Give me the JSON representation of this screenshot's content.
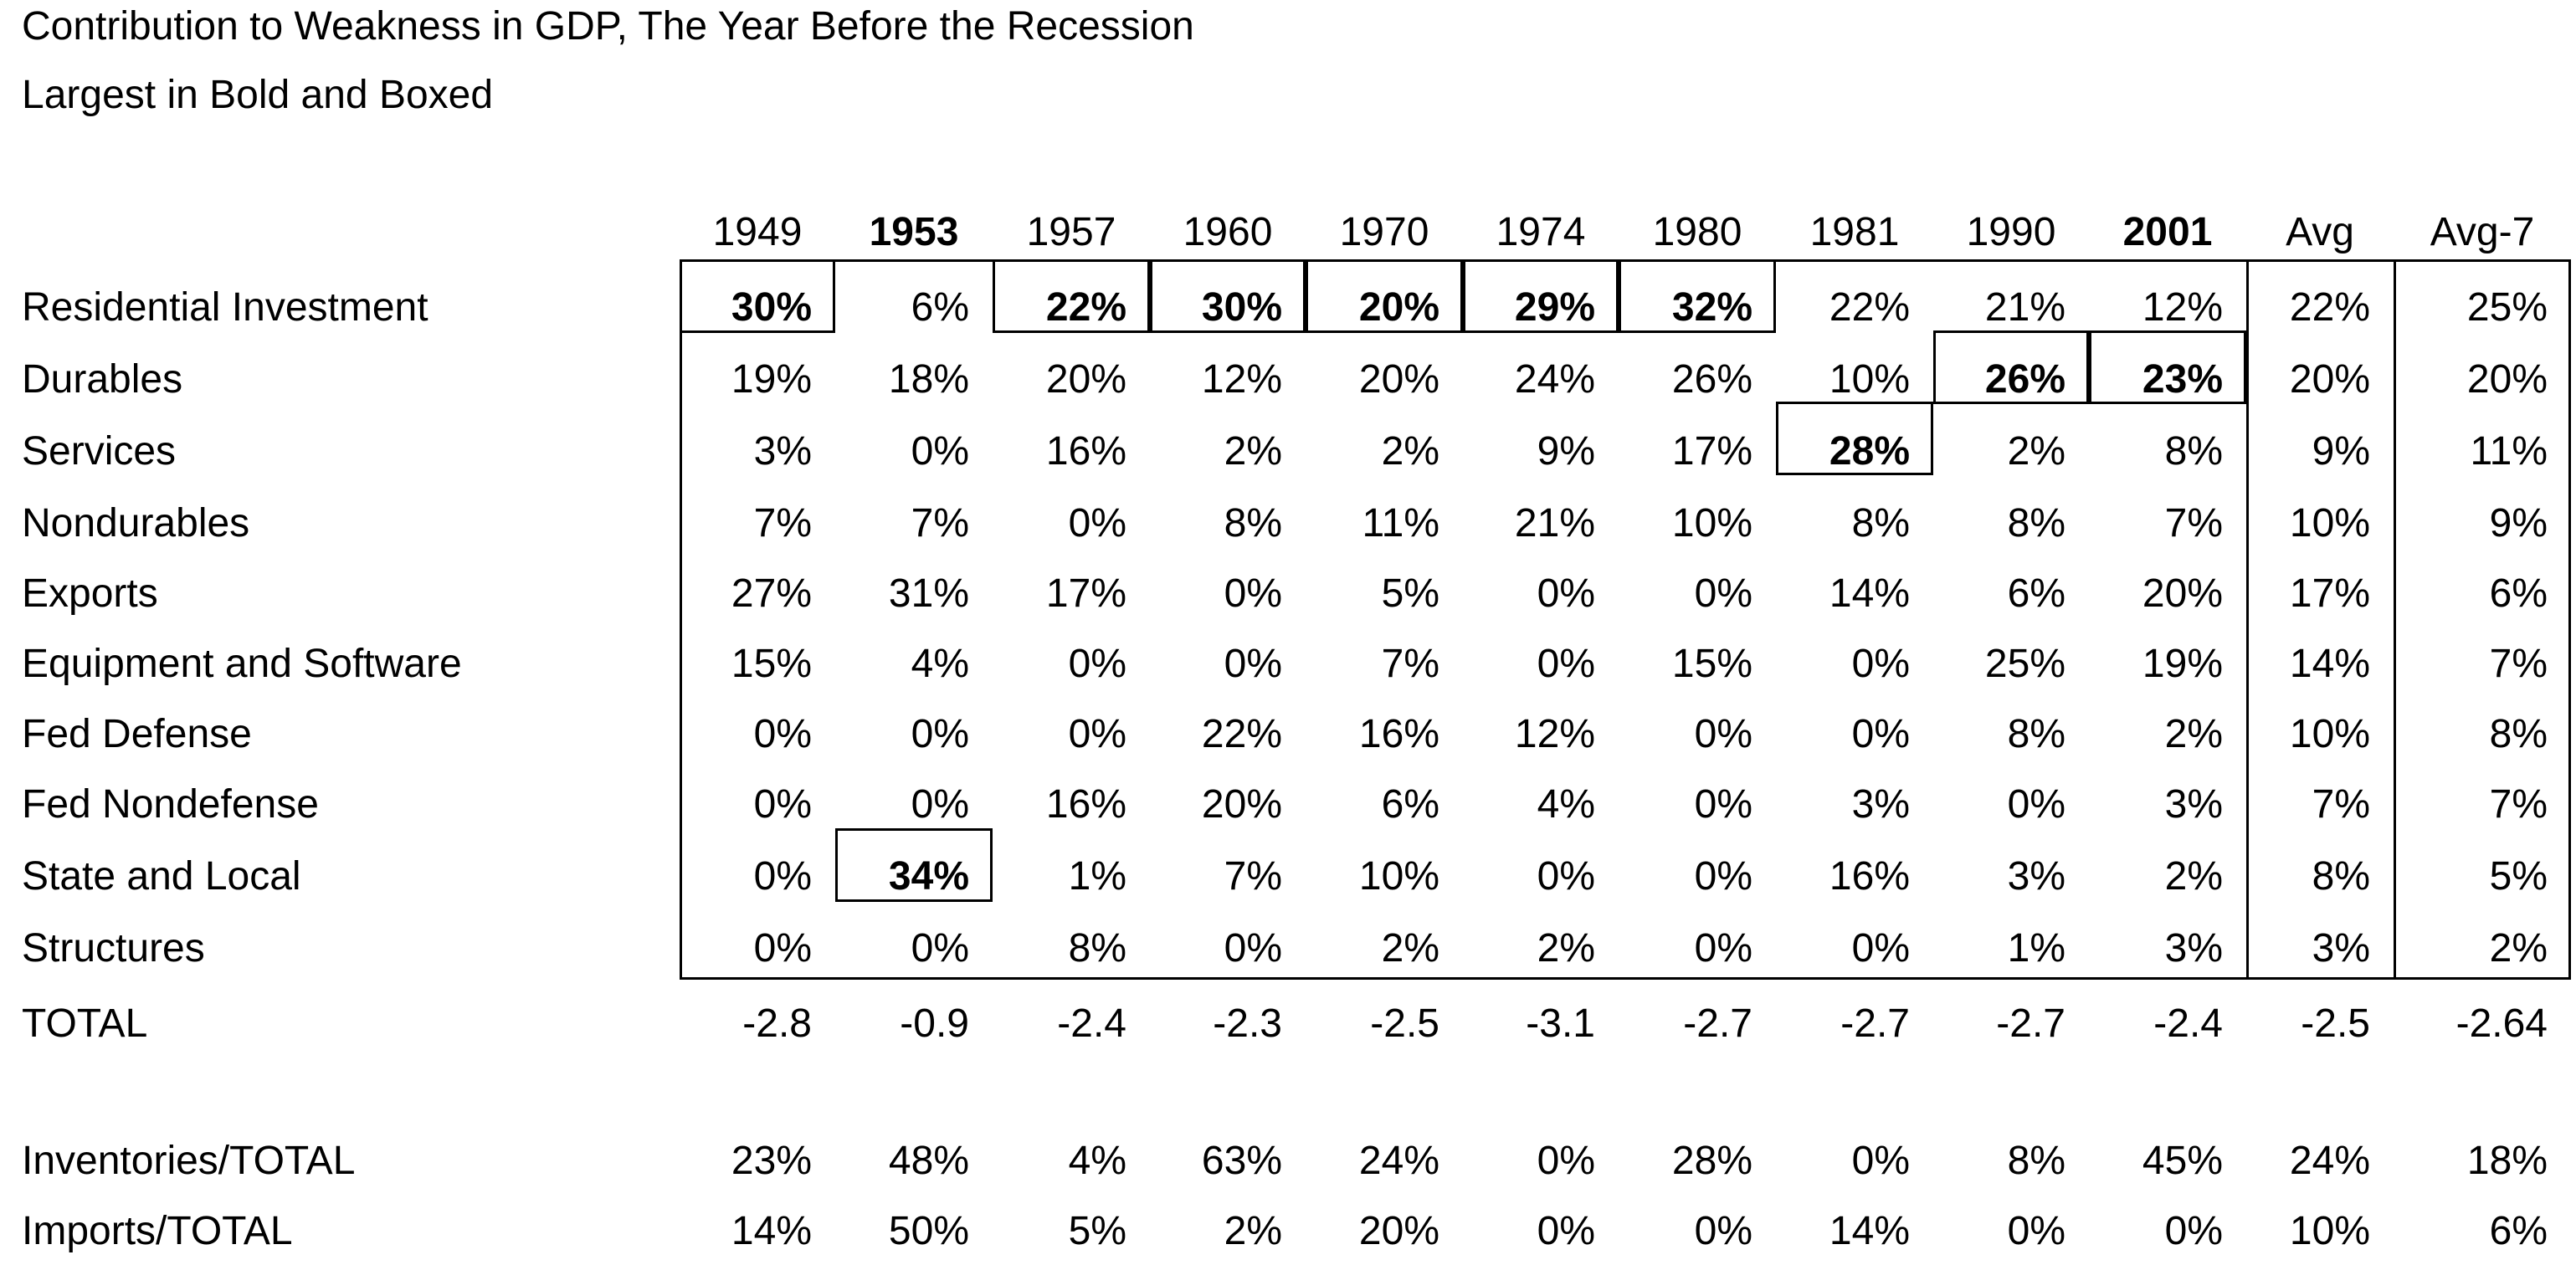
{
  "title": "Contribution to Weakness in GDP, The Year Before the Recession",
  "subtitle": "Largest in Bold and Boxed",
  "chart_data": {
    "type": "table",
    "title": "Contribution to Weakness in GDP, The Year Before the Recession",
    "subtitle": "Largest in Bold and Boxed",
    "columns": [
      "1949",
      "1953",
      "1957",
      "1960",
      "1970",
      "1974",
      "1980",
      "1981",
      "1990",
      "2001",
      "Avg",
      "Avg-7"
    ],
    "bold_columns": [
      "1953",
      "2001"
    ],
    "rows": [
      {
        "label": "Residential Investment",
        "values": [
          "30%",
          "6%",
          "22%",
          "30%",
          "20%",
          "29%",
          "32%",
          "22%",
          "21%",
          "12%",
          "22%",
          "25%"
        ]
      },
      {
        "label": "Durables",
        "values": [
          "19%",
          "18%",
          "20%",
          "12%",
          "20%",
          "24%",
          "26%",
          "10%",
          "26%",
          "23%",
          "20%",
          "20%"
        ]
      },
      {
        "label": "Services",
        "values": [
          "3%",
          "0%",
          "16%",
          "2%",
          "2%",
          "9%",
          "17%",
          "28%",
          "2%",
          "8%",
          "9%",
          "11%"
        ]
      },
      {
        "label": "Nondurables",
        "values": [
          "7%",
          "7%",
          "0%",
          "8%",
          "11%",
          "21%",
          "10%",
          "8%",
          "8%",
          "7%",
          "10%",
          "9%"
        ]
      },
      {
        "label": "Exports",
        "values": [
          "27%",
          "31%",
          "17%",
          "0%",
          "5%",
          "0%",
          "0%",
          "14%",
          "6%",
          "20%",
          "17%",
          "6%"
        ]
      },
      {
        "label": "Equipment and Software",
        "values": [
          "15%",
          "4%",
          "0%",
          "0%",
          "7%",
          "0%",
          "15%",
          "0%",
          "25%",
          "19%",
          "14%",
          "7%"
        ]
      },
      {
        "label": "Fed Defense",
        "values": [
          "0%",
          "0%",
          "0%",
          "22%",
          "16%",
          "12%",
          "0%",
          "0%",
          "8%",
          "2%",
          "10%",
          "8%"
        ]
      },
      {
        "label": "Fed Nondefense",
        "values": [
          "0%",
          "0%",
          "16%",
          "20%",
          "6%",
          "4%",
          "0%",
          "3%",
          "0%",
          "3%",
          "7%",
          "7%"
        ]
      },
      {
        "label": "State and Local",
        "values": [
          "0%",
          "34%",
          "1%",
          "7%",
          "10%",
          "0%",
          "0%",
          "16%",
          "3%",
          "2%",
          "8%",
          "5%"
        ]
      },
      {
        "label": "Structures",
        "values": [
          "0%",
          "0%",
          "8%",
          "0%",
          "2%",
          "2%",
          "0%",
          "0%",
          "1%",
          "3%",
          "3%",
          "2%"
        ]
      },
      {
        "label": "TOTAL",
        "values": [
          "-2.8",
          "-0.9",
          "-2.4",
          "-2.3",
          "-2.5",
          "-3.1",
          "-2.7",
          "-2.7",
          "-2.7",
          "-2.4",
          "-2.5",
          "-2.64"
        ]
      },
      {
        "label": "Inventories/TOTAL",
        "values": [
          "23%",
          "48%",
          "4%",
          "63%",
          "24%",
          "0%",
          "28%",
          "0%",
          "8%",
          "45%",
          "24%",
          "18%"
        ]
      },
      {
        "label": "Imports/TOTAL",
        "values": [
          "14%",
          "50%",
          "5%",
          "2%",
          "20%",
          "0%",
          "0%",
          "14%",
          "0%",
          "0%",
          "10%",
          "6%"
        ]
      }
    ],
    "highlighted_cells": [
      {
        "column": "1949",
        "row": "Residential Investment"
      },
      {
        "column": "1953",
        "row": "State and Local"
      },
      {
        "column": "1957",
        "row": "Residential Investment"
      },
      {
        "column": "1960",
        "row": "Residential Investment"
      },
      {
        "column": "1970",
        "row": "Residential Investment"
      },
      {
        "column": "1974",
        "row": "Residential Investment"
      },
      {
        "column": "1980",
        "row": "Residential Investment"
      },
      {
        "column": "1981",
        "row": "Services"
      },
      {
        "column": "1990",
        "row": "Durables"
      },
      {
        "column": "2001",
        "row": "Durables"
      }
    ],
    "highlight_style": "bold and boxed"
  }
}
